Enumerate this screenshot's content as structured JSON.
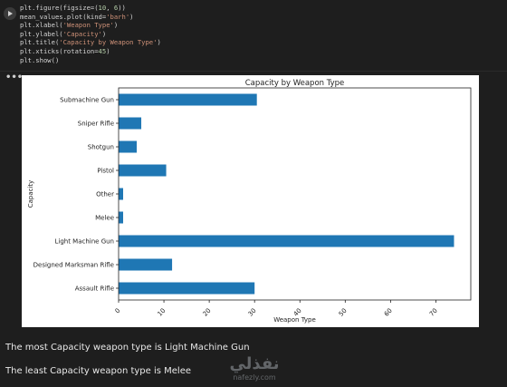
{
  "code_lines": [
    [
      {
        "t": "plt.figure(figsize=(",
        "c": ""
      },
      {
        "t": "10",
        "c": "num"
      },
      {
        "t": ", ",
        "c": ""
      },
      {
        "t": "6",
        "c": "num"
      },
      {
        "t": "))",
        "c": ""
      }
    ],
    [
      {
        "t": "mean_values.plot(kind=",
        "c": ""
      },
      {
        "t": "'barh'",
        "c": "str"
      },
      {
        "t": ")",
        "c": ""
      }
    ],
    [
      {
        "t": "plt.xlabel(",
        "c": ""
      },
      {
        "t": "'Weapon Type'",
        "c": "str"
      },
      {
        "t": ")",
        "c": ""
      }
    ],
    [
      {
        "t": "plt.ylabel(",
        "c": ""
      },
      {
        "t": "'Capacity'",
        "c": "str"
      },
      {
        "t": ")",
        "c": ""
      }
    ],
    [
      {
        "t": "plt.title(",
        "c": ""
      },
      {
        "t": "'Capacity by Weapon Type'",
        "c": "str"
      },
      {
        "t": ")",
        "c": ""
      }
    ],
    [
      {
        "t": "plt.xticks(rotation=",
        "c": ""
      },
      {
        "t": "45",
        "c": "num"
      },
      {
        "t": ")",
        "c": ""
      }
    ],
    [
      {
        "t": "plt.show()",
        "c": ""
      }
    ]
  ],
  "output": {
    "more_icon": "ellipsis-icon",
    "more_label": "•••"
  },
  "messages": {
    "most": "The most Capacity weapon type is Light Machine Gun",
    "least": "The least Capacity weapon type is Melee"
  },
  "watermark": {
    "arabic": "نفذلي",
    "latin": "nafezly.com"
  },
  "colors": {
    "bar": "#1f77b4",
    "background": "#1e1e1e",
    "text": "#e8e8e8"
  },
  "chart_data": {
    "type": "bar",
    "orientation": "horizontal",
    "title": "Capacity by Weapon Type",
    "xlabel": "Weapon Type",
    "ylabel": "Capacity",
    "categories": [
      "Assault Rifle",
      "Designed Marksman Rifle",
      "Light Machine Gun",
      "Melee",
      "Other",
      "Pistol",
      "Shotgun",
      "Sniper Rifle",
      "Submachine Gun"
    ],
    "values": [
      30,
      11.8,
      74,
      1,
      1,
      10.5,
      4,
      5,
      30.5
    ],
    "xticks": [
      0,
      10,
      20,
      30,
      40,
      50,
      60,
      70
    ],
    "xlim": [
      0,
      77.7
    ],
    "xtick_rotation": 45,
    "grid": false,
    "legend": "none"
  }
}
